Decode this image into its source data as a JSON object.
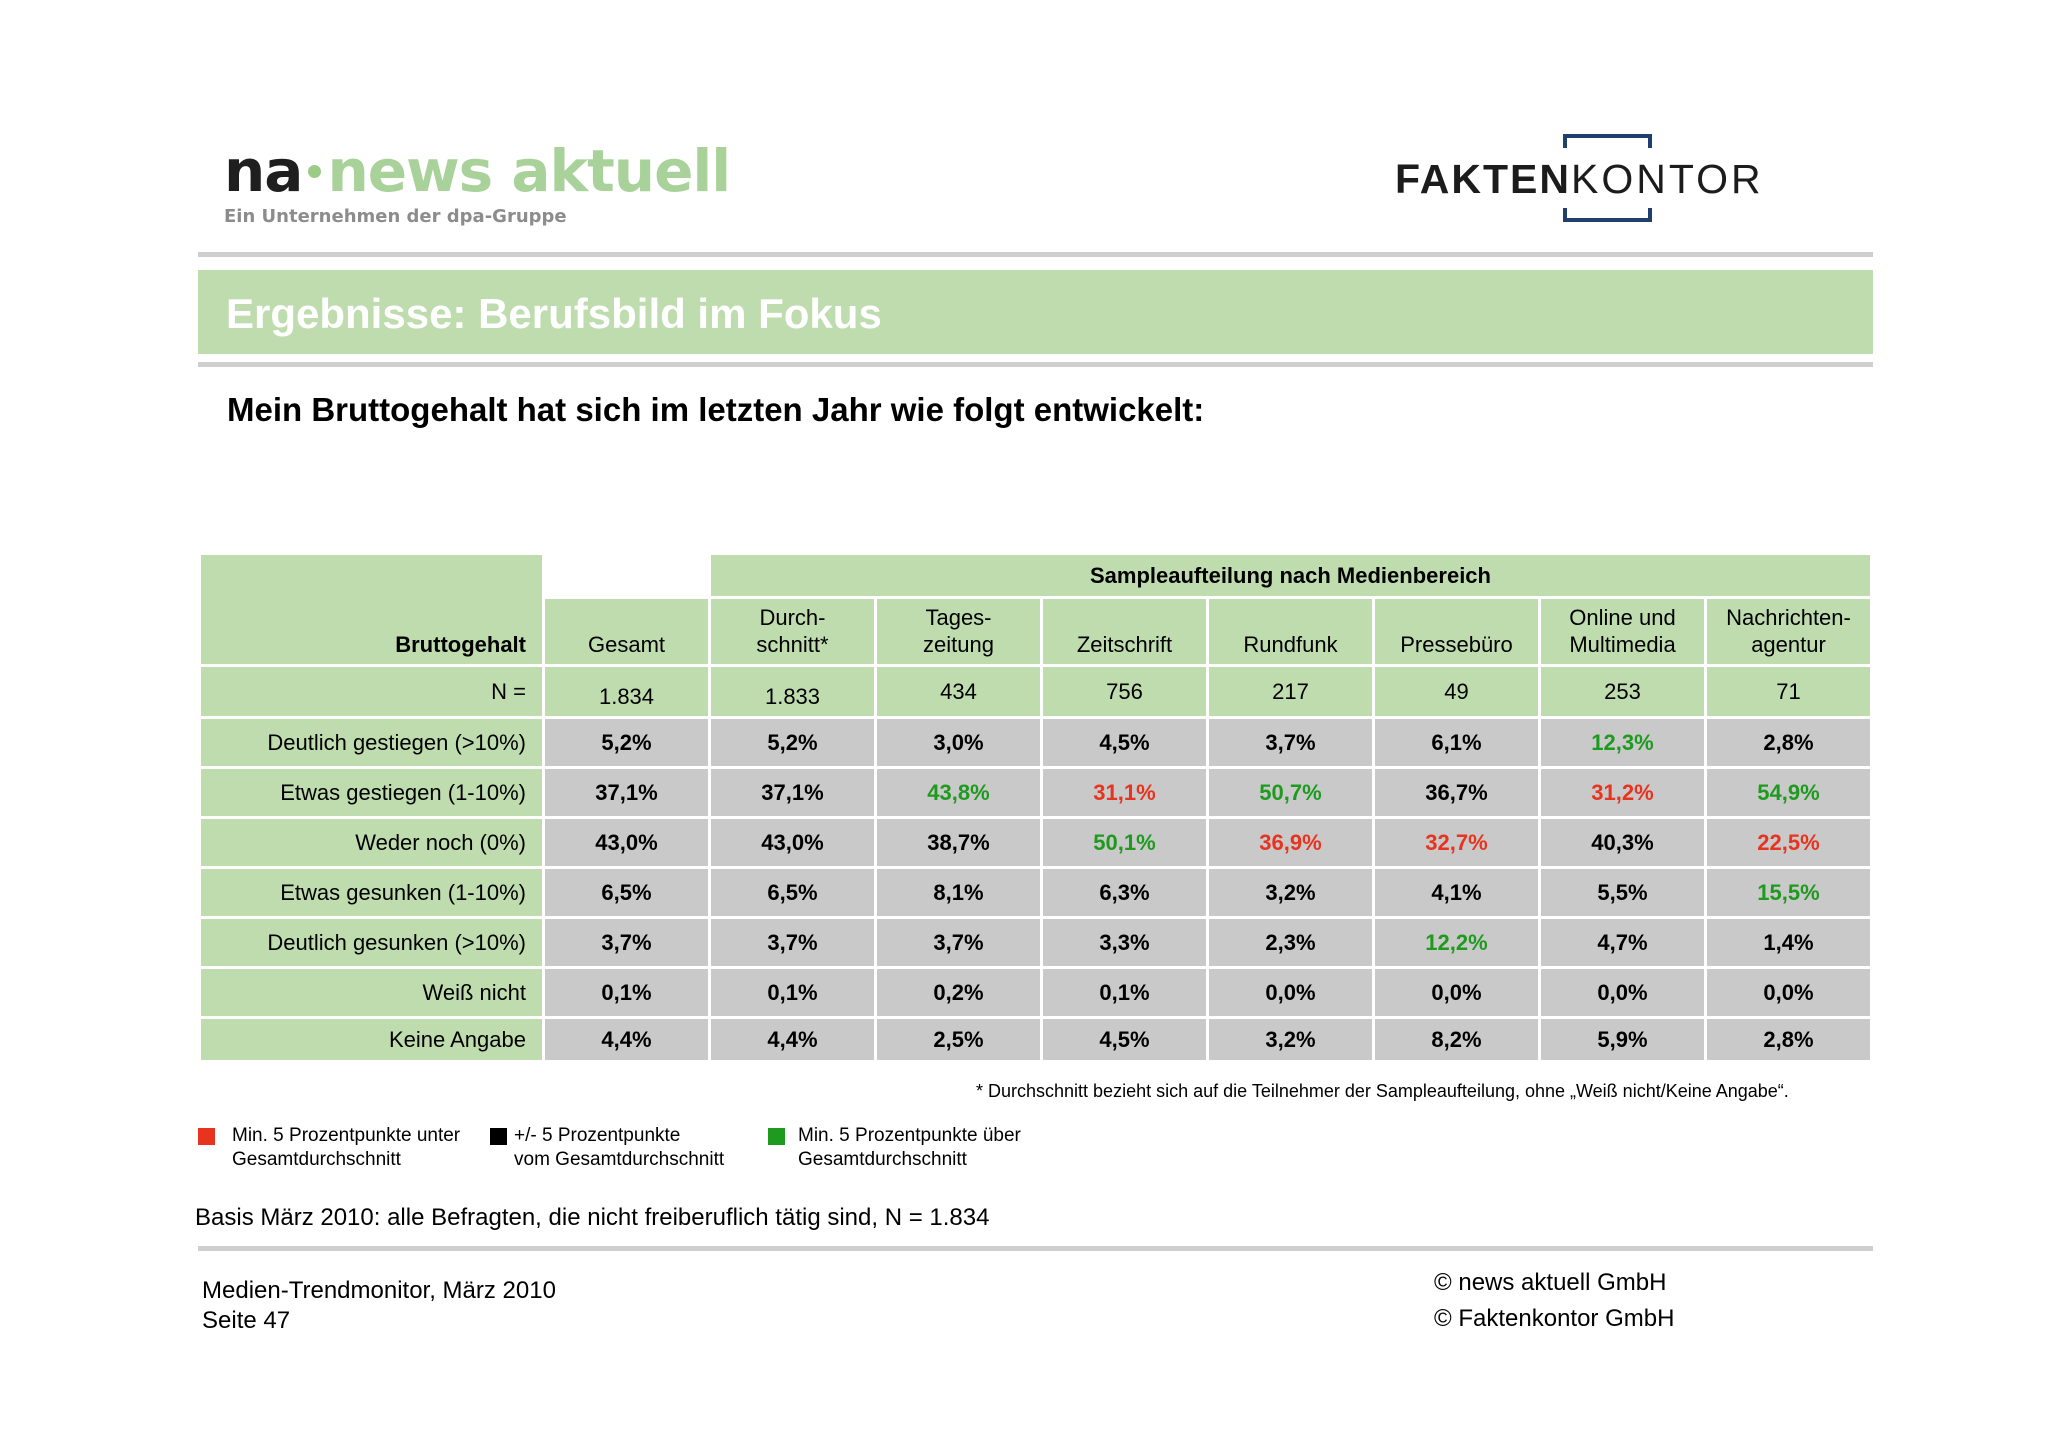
{
  "header": {
    "na_logo": {
      "na": "na",
      "news": "news aktuell",
      "tagline": "Ein Unternehmen der dpa-Gruppe"
    },
    "fk_logo": {
      "bold": "FAKTEN",
      "light": "KONTOR"
    }
  },
  "title": "Ergebnisse: Berufsbild im Fokus",
  "subtitle": "Mein Bruttogehalt hat sich im letzten Jahr wie folgt entwickelt:",
  "table": {
    "group_header": "Sampleaufteilung nach Medienbereich",
    "row_header": "Bruttogehalt",
    "columns": [
      {
        "l1": "",
        "l2": "Gesamt"
      },
      {
        "l1": "Durch-",
        "l2": "schnitt*"
      },
      {
        "l1": "Tages-",
        "l2": "zeitung"
      },
      {
        "l1": "",
        "l2": "Zeitschrift"
      },
      {
        "l1": "",
        "l2": "Rundfunk"
      },
      {
        "l1": "",
        "l2": "Pressebüro"
      },
      {
        "l1": "Online und",
        "l2": "Multimedia"
      },
      {
        "l1": "Nachrichten-",
        "l2": "agentur"
      }
    ],
    "n_label": "N =",
    "n_values": [
      "1.834",
      "1.833",
      "434",
      "756",
      "217",
      "49",
      "253",
      "71"
    ],
    "rows": [
      {
        "label": "Deutlich gestiegen (>10%)",
        "values": [
          "5,2%",
          "5,2%",
          "3,0%",
          "4,5%",
          "3,7%",
          "6,1%",
          "12,3%",
          "2,8%"
        ]
      },
      {
        "label": "Etwas gestiegen (1-10%)",
        "values": [
          "37,1%",
          "37,1%",
          "43,8%",
          "31,1%",
          "50,7%",
          "36,7%",
          "31,2%",
          "54,9%"
        ]
      },
      {
        "label": "Weder noch (0%)",
        "values": [
          "43,0%",
          "43,0%",
          "38,7%",
          "50,1%",
          "36,9%",
          "32,7%",
          "40,3%",
          "22,5%"
        ]
      },
      {
        "label": "Etwas gesunken (1-10%)",
        "values": [
          "6,5%",
          "6,5%",
          "8,1%",
          "6,3%",
          "3,2%",
          "4,1%",
          "5,5%",
          "15,5%"
        ]
      },
      {
        "label": "Deutlich gesunken (>10%)",
        "values": [
          "3,7%",
          "3,7%",
          "3,7%",
          "3,3%",
          "2,3%",
          "12,2%",
          "4,7%",
          "1,4%"
        ]
      },
      {
        "label": "Weiß nicht",
        "values": [
          "0,1%",
          "0,1%",
          "0,2%",
          "0,1%",
          "0,0%",
          "0,0%",
          "0,0%",
          "0,0%"
        ]
      },
      {
        "label": "Keine Angabe",
        "values": [
          "4,4%",
          "4,4%",
          "2,5%",
          "4,5%",
          "3,2%",
          "8,2%",
          "5,9%",
          "2,8%"
        ]
      }
    ],
    "highlight": {
      "1": {
        "2": "green",
        "3": "red",
        "4": "green",
        "6": "red",
        "7": "green"
      },
      "0": {
        "6": "green"
      },
      "2": {
        "3": "green",
        "4": "red",
        "5": "red",
        "7": "red"
      },
      "3": {
        "7": "green"
      },
      "4": {
        "5": "green"
      }
    }
  },
  "footnote": "* Durchschnitt bezieht sich auf die Teilnehmer der Sampleaufteilung, ohne „Weiß nicht/Keine Angabe“.",
  "legend": [
    {
      "color": "#e8331f",
      "line1": "Min. 5 Prozentpunkte unter",
      "line2": "Gesamtdurchschnitt"
    },
    {
      "color": "#000000",
      "line1": "+/- 5 Prozentpunkte",
      "line2": "vom Gesamtdurchschnitt"
    },
    {
      "color": "#1e9b1e",
      "line1": "Min. 5 Prozentpunkte über",
      "line2": "Gesamtdurchschnitt"
    }
  ],
  "basis": "Basis März 2010: alle Befragten, die nicht freiberuflich tätig sind, N = 1.834",
  "footer": {
    "left_line1": "Medien-Trendmonitor, März 2010",
    "left_line2": "Seite 47",
    "right_line1": "© news aktuell GmbH",
    "right_line2": "© Faktenkontor GmbH"
  }
}
